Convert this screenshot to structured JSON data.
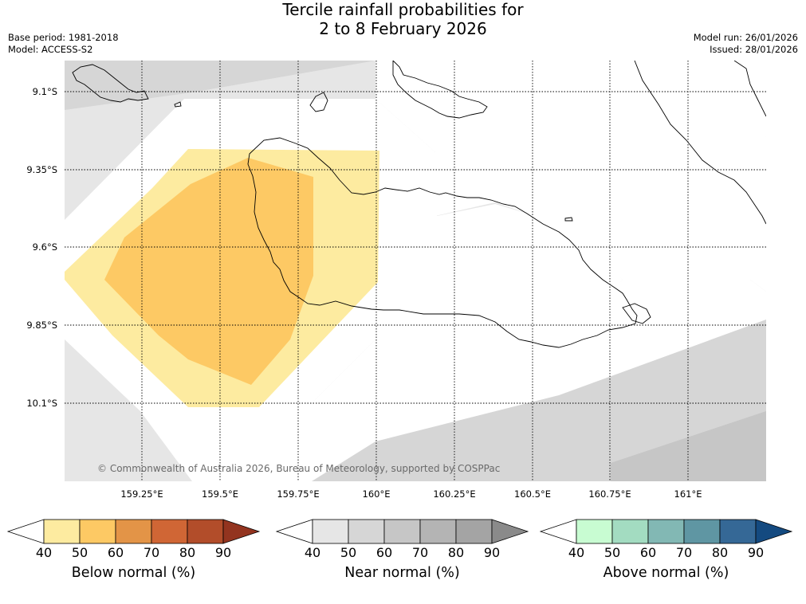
{
  "title": {
    "line1": "Tercile rainfall probabilities for",
    "line2": "2 to 8 February 2026"
  },
  "meta_left": {
    "base_period": "Base period: 1981-2018",
    "model": "Model: ACCESS-S2"
  },
  "meta_right": {
    "model_run": "Model run: 26/01/2026",
    "issued": "Issued: 28/01/2026"
  },
  "map": {
    "lat_labels": [
      "9.1°S",
      "9.35°S",
      "9.6°S",
      "9.85°S",
      "10.1°S"
    ],
    "lon_labels": [
      "159.25°E",
      "159.5°E",
      "159.75°E",
      "160°E",
      "160.25°E",
      "160.5°E",
      "160.75°E",
      "161°E"
    ],
    "copyright": "© Commonwealth of Australia 2026, Bureau of Meteorology, supported by COSPPac"
  },
  "colorbars": [
    {
      "title": "Below normal (%)",
      "ticks": [
        "40",
        "50",
        "60",
        "70",
        "80",
        "90"
      ],
      "colors": [
        "#ffffff",
        "#fdeba0",
        "#fdc964",
        "#e39447",
        "#d06635",
        "#b24d2a",
        "#93341f"
      ]
    },
    {
      "title": "Near normal (%)",
      "ticks": [
        "40",
        "50",
        "60",
        "70",
        "80",
        "90"
      ],
      "colors": [
        "#ffffff",
        "#e6e6e6",
        "#d6d6d6",
        "#c6c6c6",
        "#b4b4b4",
        "#a4a4a4",
        "#8a8a8a"
      ]
    },
    {
      "title": "Above normal (%)",
      "ticks": [
        "40",
        "50",
        "60",
        "70",
        "80",
        "90"
      ],
      "colors": [
        "#ffffff",
        "#c8fcd2",
        "#a3dcc1",
        "#82b8b4",
        "#5f96a3",
        "#356896",
        "#144a80"
      ]
    }
  ]
}
